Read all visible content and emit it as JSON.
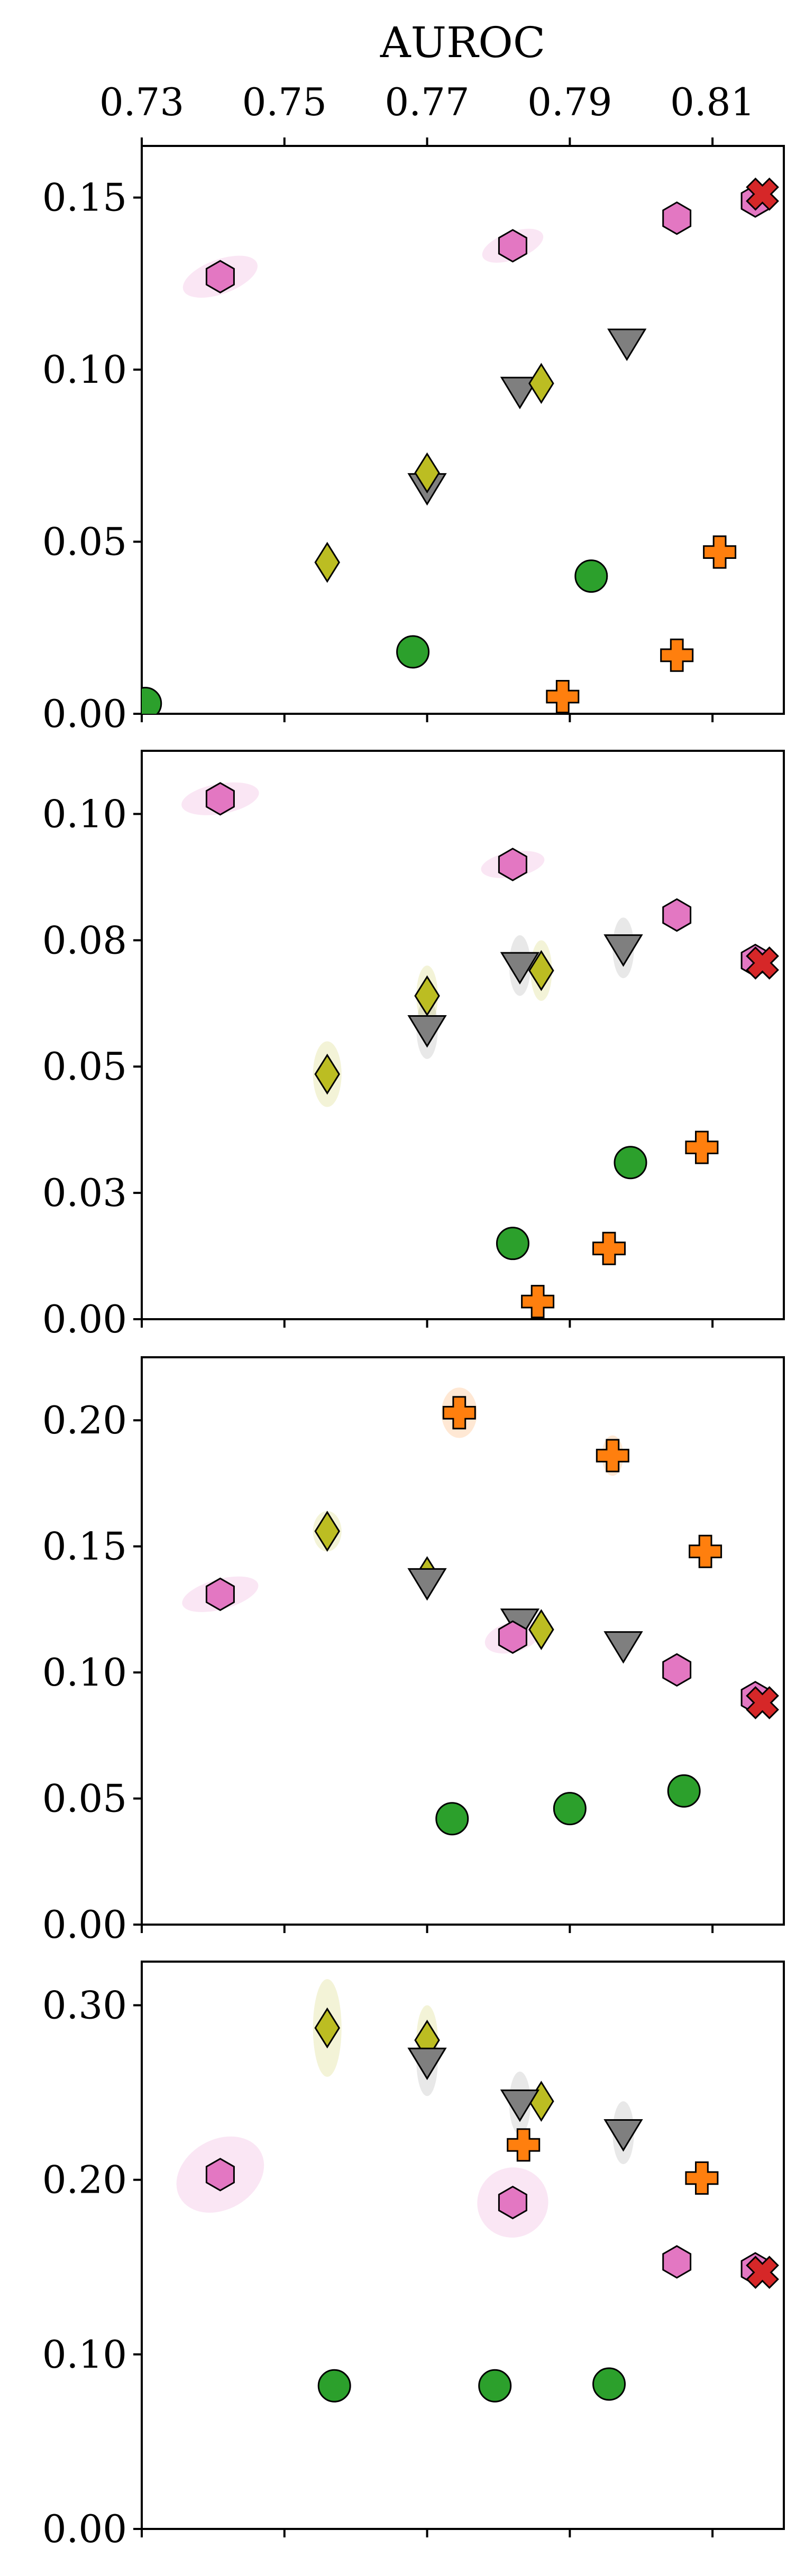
{
  "chart_data": {
    "type": "scatter",
    "x_title": "AUROC",
    "x_ticks": [
      "0.73",
      "0.75",
      "0.77",
      "0.79",
      "0.81"
    ],
    "xlim": [
      0.73,
      0.82
    ],
    "panels": [
      {
        "ylim": [
          0.0,
          0.165
        ],
        "y_ticks": [
          "0.00",
          "0.05",
          "0.10",
          "0.15"
        ],
        "points": [
          {
            "marker": "hexagon",
            "color": "#e377c2",
            "x": 0.741,
            "y": 0.127,
            "ex": 0.0055,
            "ey": 0.005,
            "rot": -20
          },
          {
            "marker": "hexagon",
            "color": "#e377c2",
            "x": 0.782,
            "y": 0.136,
            "ex": 0.0045,
            "ey": 0.004,
            "rot": -20
          },
          {
            "marker": "hexagon",
            "color": "#e377c2",
            "x": 0.805,
            "y": 0.144,
            "ex": 0,
            "ey": 0,
            "rot": 0
          },
          {
            "marker": "hexagon",
            "color": "#e377c2",
            "x": 0.816,
            "y": 0.149,
            "ex": 0,
            "ey": 0,
            "rot": 0
          },
          {
            "marker": "x",
            "color": "#d62728",
            "x": 0.817,
            "y": 0.151,
            "ex": 0,
            "ey": 0,
            "rot": 0
          },
          {
            "marker": "triangle-down",
            "color": "#7f7f7f",
            "x": 0.798,
            "y": 0.108,
            "ex": 0,
            "ey": 0,
            "rot": 0
          },
          {
            "marker": "triangle-down",
            "color": "#7f7f7f",
            "x": 0.783,
            "y": 0.094,
            "ex": 0,
            "ey": 0,
            "rot": 0
          },
          {
            "marker": "triangle-down",
            "color": "#7f7f7f",
            "x": 0.77,
            "y": 0.066,
            "ex": 0,
            "ey": 0,
            "rot": 0
          },
          {
            "marker": "diamond",
            "color": "#bcbd22",
            "x": 0.786,
            "y": 0.096,
            "ex": 0,
            "ey": 0,
            "rot": 0
          },
          {
            "marker": "diamond",
            "color": "#bcbd22",
            "x": 0.77,
            "y": 0.07,
            "ex": 0,
            "ey": 0,
            "rot": 0
          },
          {
            "marker": "diamond",
            "color": "#bcbd22",
            "x": 0.756,
            "y": 0.044,
            "ex": 0,
            "ey": 0,
            "rot": 0
          },
          {
            "marker": "circle",
            "color": "#2ca02c",
            "x": 0.793,
            "y": 0.04,
            "ex": 0,
            "ey": 0,
            "rot": 0
          },
          {
            "marker": "circle",
            "color": "#2ca02c",
            "x": 0.768,
            "y": 0.018,
            "ex": 0,
            "ey": 0,
            "rot": 0
          },
          {
            "marker": "circle",
            "color": "#2ca02c",
            "x": 0.7305,
            "y": 0.003,
            "ex": 0,
            "ey": 0,
            "rot": 0
          },
          {
            "marker": "plus",
            "color": "#ff7f0e",
            "x": 0.811,
            "y": 0.047,
            "ex": 0,
            "ey": 0,
            "rot": 0
          },
          {
            "marker": "plus",
            "color": "#ff7f0e",
            "x": 0.805,
            "y": 0.017,
            "ex": 0,
            "ey": 0,
            "rot": 0
          },
          {
            "marker": "plus",
            "color": "#ff7f0e",
            "x": 0.789,
            "y": 0.005,
            "ex": 0,
            "ey": 0,
            "rot": 0
          }
        ]
      },
      {
        "ylim": [
          0.0,
          0.1125
        ],
        "y_ticks": [
          "0.00",
          "0.03",
          "0.05",
          "0.08",
          "0.10"
        ],
        "y_tick_values": [
          0.0,
          0.025,
          0.05,
          0.075,
          0.1
        ],
        "points": [
          {
            "marker": "hexagon",
            "color": "#e377c2",
            "x": 0.741,
            "y": 0.103,
            "ex": 0.0055,
            "ey": 0.003,
            "rot": -10
          },
          {
            "marker": "hexagon",
            "color": "#e377c2",
            "x": 0.782,
            "y": 0.09,
            "ex": 0.0045,
            "ey": 0.0025,
            "rot": -10
          },
          {
            "marker": "hexagon",
            "color": "#e377c2",
            "x": 0.805,
            "y": 0.08,
            "ex": 0,
            "ey": 0,
            "rot": 0
          },
          {
            "marker": "hexagon",
            "color": "#e377c2",
            "x": 0.816,
            "y": 0.071,
            "ex": 0,
            "ey": 0,
            "rot": 0
          },
          {
            "marker": "x",
            "color": "#d62728",
            "x": 0.817,
            "y": 0.0705,
            "ex": 0,
            "ey": 0,
            "rot": 0
          },
          {
            "marker": "triangle-down",
            "color": "#7f7f7f",
            "x": 0.783,
            "y": 0.07,
            "ex": 0.0015,
            "ey": 0.006,
            "rot": 0
          },
          {
            "marker": "triangle-down",
            "color": "#7f7f7f",
            "x": 0.7975,
            "y": 0.0735,
            "ex": 0.0015,
            "ey": 0.006,
            "rot": 0
          },
          {
            "marker": "triangle-down",
            "color": "#7f7f7f",
            "x": 0.77,
            "y": 0.0575,
            "ex": 0.0015,
            "ey": 0.006,
            "rot": 0
          },
          {
            "marker": "diamond",
            "color": "#bcbd22",
            "x": 0.786,
            "y": 0.069,
            "ex": 0.0015,
            "ey": 0.006,
            "rot": 0
          },
          {
            "marker": "diamond",
            "color": "#bcbd22",
            "x": 0.77,
            "y": 0.064,
            "ex": 0.0015,
            "ey": 0.006,
            "rot": 0
          },
          {
            "marker": "diamond",
            "color": "#bcbd22",
            "x": 0.756,
            "y": 0.0485,
            "ex": 0.002,
            "ey": 0.0065,
            "rot": 0
          },
          {
            "marker": "circle",
            "color": "#2ca02c",
            "x": 0.7985,
            "y": 0.031,
            "ex": 0,
            "ey": 0,
            "rot": 0
          },
          {
            "marker": "circle",
            "color": "#2ca02c",
            "x": 0.782,
            "y": 0.015,
            "ex": 0,
            "ey": 0,
            "rot": 0
          },
          {
            "marker": "plus",
            "color": "#ff7f0e",
            "x": 0.8085,
            "y": 0.034,
            "ex": 0,
            "ey": 0,
            "rot": 0
          },
          {
            "marker": "plus",
            "color": "#ff7f0e",
            "x": 0.7955,
            "y": 0.014,
            "ex": 0,
            "ey": 0,
            "rot": 0
          },
          {
            "marker": "plus",
            "color": "#ff7f0e",
            "x": 0.7855,
            "y": 0.0035,
            "ex": 0,
            "ey": 0,
            "rot": 0
          }
        ]
      },
      {
        "ylim": [
          0.0,
          0.225
        ],
        "y_ticks": [
          "0.00",
          "0.05",
          "0.10",
          "0.15",
          "0.20"
        ],
        "points": [
          {
            "marker": "plus",
            "color": "#ff7f0e",
            "x": 0.7745,
            "y": 0.203,
            "ex": 0.0025,
            "ey": 0.01,
            "rot": 0
          },
          {
            "marker": "plus",
            "color": "#ff7f0e",
            "x": 0.796,
            "y": 0.186,
            "ex": 0.0015,
            "ey": 0.008,
            "rot": 0
          },
          {
            "marker": "plus",
            "color": "#ff7f0e",
            "x": 0.809,
            "y": 0.148,
            "ex": 0,
            "ey": 0,
            "rot": 0
          },
          {
            "marker": "diamond",
            "color": "#bcbd22",
            "x": 0.756,
            "y": 0.156,
            "ex": 0.002,
            "ey": 0.008,
            "rot": 0
          },
          {
            "marker": "diamond",
            "color": "#bcbd22",
            "x": 0.77,
            "y": 0.138,
            "ex": 0,
            "ey": 0,
            "rot": 0
          },
          {
            "marker": "diamond",
            "color": "#bcbd22",
            "x": 0.786,
            "y": 0.117,
            "ex": 0,
            "ey": 0,
            "rot": 0
          },
          {
            "marker": "triangle-down",
            "color": "#7f7f7f",
            "x": 0.77,
            "y": 0.136,
            "ex": 0,
            "ey": 0,
            "rot": 0
          },
          {
            "marker": "triangle-down",
            "color": "#7f7f7f",
            "x": 0.783,
            "y": 0.12,
            "ex": 0,
            "ey": 0,
            "rot": 0
          },
          {
            "marker": "triangle-down",
            "color": "#7f7f7f",
            "x": 0.7975,
            "y": 0.111,
            "ex": 0,
            "ey": 0,
            "rot": 0
          },
          {
            "marker": "hexagon",
            "color": "#e377c2",
            "x": 0.741,
            "y": 0.131,
            "ex": 0.0055,
            "ey": 0.006,
            "rot": -15
          },
          {
            "marker": "hexagon",
            "color": "#e377c2",
            "x": 0.782,
            "y": 0.114,
            "ex": 0.004,
            "ey": 0.006,
            "rot": -15
          },
          {
            "marker": "hexagon",
            "color": "#e377c2",
            "x": 0.805,
            "y": 0.101,
            "ex": 0,
            "ey": 0,
            "rot": 0
          },
          {
            "marker": "hexagon",
            "color": "#e377c2",
            "x": 0.816,
            "y": 0.09,
            "ex": 0,
            "ey": 0,
            "rot": 0
          },
          {
            "marker": "x",
            "color": "#d62728",
            "x": 0.817,
            "y": 0.088,
            "ex": 0,
            "ey": 0,
            "rot": 0
          },
          {
            "marker": "circle",
            "color": "#2ca02c",
            "x": 0.7735,
            "y": 0.042,
            "ex": 0,
            "ey": 0,
            "rot": 0
          },
          {
            "marker": "circle",
            "color": "#2ca02c",
            "x": 0.79,
            "y": 0.046,
            "ex": 0,
            "ey": 0,
            "rot": 0
          },
          {
            "marker": "circle",
            "color": "#2ca02c",
            "x": 0.806,
            "y": 0.053,
            "ex": 0,
            "ey": 0,
            "rot": 0
          }
        ]
      },
      {
        "ylim": [
          0.0,
          0.325
        ],
        "y_ticks": [
          "0.00",
          "0.10",
          "0.20",
          "0.30"
        ],
        "points": [
          {
            "marker": "diamond",
            "color": "#bcbd22",
            "x": 0.756,
            "y": 0.287,
            "ex": 0.002,
            "ey": 0.028,
            "rot": 0
          },
          {
            "marker": "diamond",
            "color": "#bcbd22",
            "x": 0.77,
            "y": 0.28,
            "ex": 0.0015,
            "ey": 0.02,
            "rot": 0
          },
          {
            "marker": "diamond",
            "color": "#bcbd22",
            "x": 0.786,
            "y": 0.245,
            "ex": 0,
            "ey": 0,
            "rot": 0
          },
          {
            "marker": "triangle-down",
            "color": "#7f7f7f",
            "x": 0.77,
            "y": 0.268,
            "ex": 0.0015,
            "ey": 0.02,
            "rot": 0
          },
          {
            "marker": "triangle-down",
            "color": "#7f7f7f",
            "x": 0.783,
            "y": 0.244,
            "ex": 0.0015,
            "ey": 0.018,
            "rot": 0
          },
          {
            "marker": "triangle-down",
            "color": "#7f7f7f",
            "x": 0.7975,
            "y": 0.227,
            "ex": 0.0015,
            "ey": 0.018,
            "rot": 0
          },
          {
            "marker": "plus",
            "color": "#ff7f0e",
            "x": 0.7835,
            "y": 0.22,
            "ex": 0,
            "ey": 0,
            "rot": 0
          },
          {
            "marker": "plus",
            "color": "#ff7f0e",
            "x": 0.8085,
            "y": 0.201,
            "ex": 0,
            "ey": 0,
            "rot": 0
          },
          {
            "marker": "hexagon",
            "color": "#e377c2",
            "x": 0.741,
            "y": 0.203,
            "ex": 0.0065,
            "ey": 0.02,
            "rot": -30
          },
          {
            "marker": "hexagon",
            "color": "#e377c2",
            "x": 0.782,
            "y": 0.187,
            "ex": 0.005,
            "ey": 0.02,
            "rot": -30
          },
          {
            "marker": "hexagon",
            "color": "#e377c2",
            "x": 0.805,
            "y": 0.153,
            "ex": 0.002,
            "ey": 0.008,
            "rot": -30
          },
          {
            "marker": "hexagon",
            "color": "#e377c2",
            "x": 0.816,
            "y": 0.149,
            "ex": 0,
            "ey": 0,
            "rot": 0
          },
          {
            "marker": "x",
            "color": "#d62728",
            "x": 0.817,
            "y": 0.147,
            "ex": 0,
            "ey": 0,
            "rot": 0
          },
          {
            "marker": "circle",
            "color": "#2ca02c",
            "x": 0.757,
            "y": 0.082,
            "ex": 0,
            "ey": 0,
            "rot": 0
          },
          {
            "marker": "circle",
            "color": "#2ca02c",
            "x": 0.7795,
            "y": 0.082,
            "ex": 0,
            "ey": 0,
            "rot": 0
          },
          {
            "marker": "circle",
            "color": "#2ca02c",
            "x": 0.7955,
            "y": 0.083,
            "ex": 0,
            "ey": 0,
            "rot": 0
          }
        ]
      }
    ]
  }
}
